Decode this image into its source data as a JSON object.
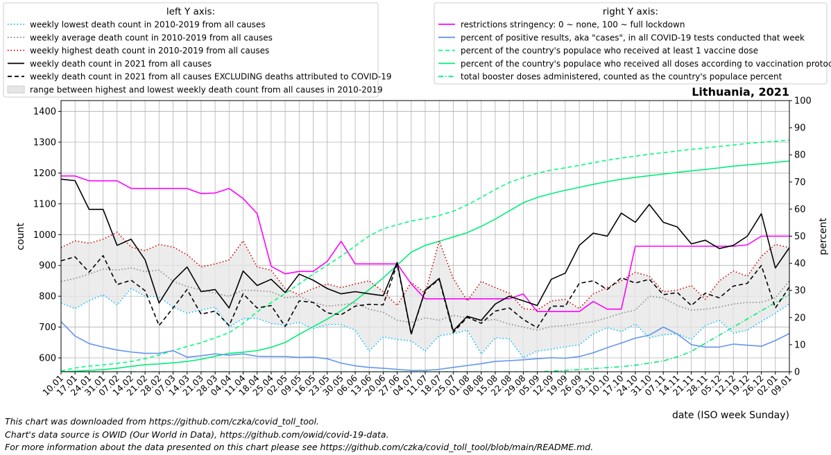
{
  "chart_data": {
    "type": "line",
    "title": "Lithuania, 2021",
    "xlabel": "date (ISO week Sunday)",
    "ylabel_left": "count",
    "ylabel_right": "percent",
    "ylim_left": [
      555,
      1435
    ],
    "ylim_right": [
      0,
      100
    ],
    "yticks_left": [
      600,
      700,
      800,
      900,
      1000,
      1100,
      1200,
      1300,
      1400
    ],
    "yticks_right": [
      0,
      10,
      20,
      30,
      40,
      50,
      60,
      70,
      80,
      90,
      100
    ],
    "grid": true,
    "categories": [
      "10.01",
      "17.01",
      "24.01",
      "31.01",
      "07.02",
      "14.02",
      "21.02",
      "28.02",
      "07.03",
      "14.03",
      "21.03",
      "28.03",
      "04.04",
      "11.04",
      "18.04",
      "25.04",
      "02.05",
      "09.05",
      "16.05",
      "23.05",
      "30.05",
      "06.06",
      "13.06",
      "20.06",
      "27.06",
      "04.07",
      "11.07",
      "18.07",
      "25.07",
      "01.08",
      "08.08",
      "15.08",
      "22.08",
      "29.08",
      "05.09",
      "12.09",
      "19.09",
      "26.09",
      "03.10",
      "10.10",
      "17.10",
      "24.10",
      "31.10",
      "07.11",
      "14.11",
      "21.11",
      "28.11",
      "05.12",
      "12.12",
      "19.12",
      "26.12",
      "02.01",
      "09.01"
    ],
    "legend_left": {
      "title": "left Y axis:",
      "entries": [
        "weekly lowest death count in 2010-2019 from all causes",
        "weekly average death count in 2010-2019 from all causes",
        "weekly highest death count in 2010-2019 from all causes",
        "weekly death count in 2021 from all causes",
        "weekly death count in 2021 from all causes EXCLUDING deaths attributed to COVID-19",
        "range between highest and lowest weekly death count from all causes in 2010-2019"
      ]
    },
    "legend_right": {
      "title": "right Y axis:",
      "entries": [
        "restrictions stringency: 0 ~ none, 100 ~ full lockdown",
        "percent of positive results, aka \"cases\", in all COVID-19 tests conducted that week",
        "percent of the country's populace who received at least 1 vaccine dose",
        "percent of the country's populace who received all doses according to vaccination protocol",
        "total booster doses administered, counted as the country's populace percent"
      ]
    },
    "series_left": [
      {
        "name": "weekly lowest death count in 2010-2019 from all causes",
        "color": "#00bfff",
        "style": "dotted",
        "values": [
          778,
          760,
          785,
          805,
          772,
          825,
          800,
          798,
          765,
          745,
          755,
          765,
          700,
          728,
          728,
          712,
          706,
          715,
          695,
          708,
          708,
          690,
          622,
          668,
          660,
          655,
          622,
          672,
          678,
          690,
          612,
          665,
          662,
          600,
          622,
          628,
          636,
          642,
          678,
          698,
          685,
          710,
          665,
          675,
          678,
          660,
          705,
          722,
          680,
          690,
          718,
          745,
          775
        ]
      },
      {
        "name": "weekly average death count in 2010-2019 from all causes",
        "color": "#808080",
        "style": "dotted",
        "values": [
          848,
          858,
          872,
          888,
          885,
          892,
          880,
          885,
          848,
          832,
          820,
          810,
          800,
          820,
          818,
          815,
          795,
          800,
          780,
          768,
          772,
          778,
          758,
          748,
          722,
          715,
          730,
          722,
          738,
          730,
          720,
          725,
          710,
          700,
          690,
          702,
          705,
          712,
          718,
          730,
          745,
          755,
          800,
          795,
          770,
          755,
          758,
          765,
          775,
          780,
          780,
          795,
          850
        ]
      },
      {
        "name": "weekly highest death count in 2010-2019 from all causes",
        "color": "#cc0000",
        "style": "dotted",
        "values": [
          958,
          980,
          972,
          985,
          1008,
          960,
          948,
          968,
          960,
          935,
          895,
          905,
          918,
          980,
          895,
          885,
          825,
          805,
          825,
          840,
          828,
          840,
          850,
          815,
          770,
          845,
          810,
          980,
          858,
          785,
          848,
          828,
          810,
          760,
          755,
          785,
          790,
          760,
          808,
          828,
          850,
          878,
          865,
          815,
          820,
          835,
          790,
          850,
          882,
          865,
          930,
          968,
          958
        ]
      },
      {
        "name": "weekly death count in 2021 from all causes",
        "color": "#000000",
        "style": "solid",
        "values": [
          1180,
          1175,
          1082,
          1082,
          965,
          985,
          918,
          778,
          850,
          895,
          815,
          822,
          762,
          882,
          835,
          855,
          812,
          872,
          852,
          825,
          808,
          815,
          808,
          802,
          910,
          678,
          820,
          858,
          688,
          735,
          722,
          775,
          800,
          785,
          770,
          855,
          875,
          965,
          1005,
          995,
          1070,
          1040,
          1098,
          1040,
          1025,
          970,
          982,
          955,
          965,
          995,
          1068,
          892,
          958
        ]
      },
      {
        "name": "weekly death count in 2021 from all causes EXCLUDING deaths attributed to COVID-19",
        "color": "#000000",
        "style": "dashed",
        "values": [
          915,
          928,
          878,
          932,
          838,
          852,
          818,
          705,
          762,
          822,
          742,
          752,
          705,
          808,
          762,
          770,
          702,
          785,
          780,
          746,
          740,
          768,
          774,
          772,
          905,
          676,
          818,
          855,
          682,
          732,
          712,
          752,
          762,
          725,
          698,
          768,
          768,
          842,
          850,
          822,
          860,
          843,
          855,
          805,
          812,
          770,
          810,
          795,
          833,
          842,
          900,
          762,
          830
        ]
      }
    ],
    "series_right": [
      {
        "name": "restrictions stringency: 0 ~ none, 100 ~ full lockdown",
        "color": "#ff00ff",
        "style": "solid",
        "values": [
          72.2,
          72.2,
          70.4,
          70.4,
          70.4,
          67.6,
          67.6,
          67.6,
          67.6,
          67.6,
          65.7,
          65.9,
          67.6,
          63.9,
          58.3,
          38.9,
          36.1,
          37.0,
          37.0,
          40.7,
          48.1,
          39.8,
          39.8,
          39.8,
          39.8,
          32.4,
          26.9,
          26.9,
          26.9,
          26.9,
          26.9,
          26.9,
          26.9,
          28.7,
          22.2,
          22.2,
          22.2,
          22.2,
          25.9,
          23.1,
          23.1,
          46.3,
          46.3,
          46.3,
          46.3,
          46.3,
          46.3,
          46.3,
          46.3,
          46.8,
          50.0,
          50.0,
          50.0
        ]
      },
      {
        "name": "percent of positive results, aka \"cases\", in all COVID-19 tests conducted that week",
        "color": "#6495ed",
        "style": "solid",
        "values": [
          18.5,
          13.2,
          10.4,
          9.1,
          8.0,
          7.3,
          6.8,
          6.8,
          7.8,
          5.4,
          5.9,
          6.6,
          6.1,
          6.6,
          5.7,
          5.6,
          5.6,
          5.3,
          5.4,
          4.8,
          3.2,
          2.2,
          1.6,
          1.3,
          0.9,
          0.5,
          0.5,
          0.9,
          1.6,
          2.3,
          3.0,
          3.8,
          4.1,
          4.4,
          4.8,
          5.2,
          5.0,
          5.6,
          7.0,
          8.9,
          10.6,
          12.4,
          13.5,
          16.5,
          13.9,
          10.0,
          9.1,
          9.1,
          10.2,
          9.8,
          9.4,
          11.5,
          14.1
        ]
      },
      {
        "name": "percent of the country's populace who received at least 1 vaccine dose",
        "color": "#00ff7f",
        "style": "dashed",
        "values": [
          0.3,
          1.4,
          2.1,
          2.5,
          3.1,
          3.8,
          4.8,
          6.2,
          7.8,
          9.3,
          10.7,
          12.5,
          14.4,
          17.9,
          22.1,
          25.5,
          28.9,
          32.4,
          36.0,
          39.3,
          42.6,
          46.4,
          50.1,
          52.7,
          54.2,
          55.6,
          56.5,
          57.6,
          59.2,
          61.5,
          64.3,
          67.2,
          69.8,
          71.6,
          73.2,
          74.4,
          75.2,
          76.1,
          77.1,
          78.0,
          78.8,
          79.5,
          80.2,
          80.8,
          81.4,
          82.0,
          82.5,
          83.1,
          83.6,
          84.2,
          84.6,
          85.0,
          85.4
        ]
      },
      {
        "name": "percent of the country's populace who received all doses according to vaccination protocol",
        "color": "#00ee77",
        "style": "solid",
        "values": [
          0.0,
          0.2,
          0.5,
          0.8,
          1.3,
          2.0,
          2.6,
          2.9,
          3.3,
          3.8,
          4.6,
          5.7,
          6.8,
          7.2,
          7.8,
          9.0,
          10.8,
          13.8,
          16.6,
          19.4,
          22.5,
          26.2,
          30.3,
          34.6,
          39.3,
          44.1,
          46.6,
          48.1,
          49.7,
          51.3,
          53.6,
          56.3,
          59.3,
          62.3,
          64.3,
          65.7,
          66.9,
          68.0,
          69.1,
          70.1,
          71.0,
          71.7,
          72.3,
          72.9,
          73.5,
          74.1,
          74.6,
          75.2,
          75.8,
          76.3,
          76.7,
          77.2,
          77.7
        ]
      },
      {
        "name": "total booster doses administered, counted as the country's populace percent",
        "color": "#00ee77",
        "style": "dashdot",
        "values": [
          0,
          0,
          0,
          0,
          0,
          0,
          0,
          0,
          0,
          0,
          0,
          0,
          0,
          0,
          0,
          0,
          0,
          0,
          0,
          0,
          0,
          0,
          0,
          0,
          0,
          0,
          0,
          0,
          0,
          0,
          0,
          0,
          0,
          0,
          0,
          0.2,
          0.5,
          0.8,
          1.2,
          1.5,
          1.9,
          2.4,
          3.2,
          4.0,
          5.5,
          7.5,
          10.5,
          13.5,
          16.5,
          19.5,
          22.5,
          25.5,
          28.5
        ]
      }
    ]
  },
  "footer": {
    "line1": "This chart was downloaded from https://github.com/czka/covid_toll_tool.",
    "line2": "Chart's data source is OWID (Our World in Data), https://github.com/owid/covid-19-data.",
    "line3": "For more information about the data presented on this chart please see https://github.com/czka/covid_toll_tool/blob/main/README.md."
  }
}
